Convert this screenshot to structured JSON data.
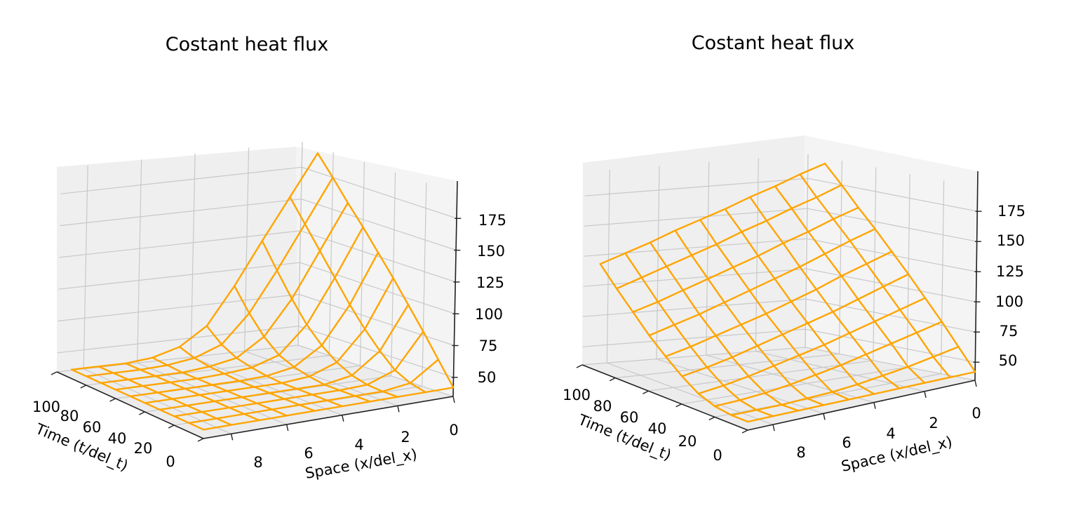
{
  "colors": {
    "wire": "#FFA500"
  },
  "chart_data": [
    {
      "type": "surface-wireframe",
      "title": "Costant heat flux",
      "xlabel": "Time (t/del_t)",
      "ylabel": "Space (x/del_x)",
      "zlabel": "",
      "x_ticks": [
        0,
        20,
        40,
        60,
        80,
        100
      ],
      "y_ticks": [
        0,
        2,
        4,
        6,
        8
      ],
      "z_ticks": [
        50,
        75,
        100,
        125,
        150,
        175
      ],
      "xlim": [
        0,
        100
      ],
      "ylim": [
        0,
        9
      ],
      "zlim": [
        35,
        195
      ],
      "grid": true,
      "surface": {
        "x_lines": [
          0,
          10,
          20,
          30,
          40,
          50,
          60,
          70,
          80,
          90
        ],
        "y_points": [
          0,
          1,
          2,
          3,
          4,
          5,
          6,
          7,
          8,
          9
        ],
        "z_by_x_line": [
          [
            42,
            42,
            42,
            42,
            42,
            42,
            42,
            42,
            42,
            42
          ],
          [
            60,
            45,
            42,
            42,
            42,
            42,
            42,
            42,
            42,
            42
          ],
          [
            78,
            51,
            43,
            42,
            42,
            42,
            42,
            42,
            42,
            42
          ],
          [
            95,
            62,
            46,
            42,
            42,
            42,
            42,
            42,
            42,
            42
          ],
          [
            112,
            75,
            52,
            44,
            42,
            42,
            42,
            42,
            42,
            42
          ],
          [
            128,
            90,
            61,
            47,
            43,
            42,
            42,
            42,
            42,
            42
          ],
          [
            144,
            107,
            73,
            52,
            45,
            43,
            42,
            42,
            42,
            42
          ],
          [
            159,
            124,
            89,
            62,
            48,
            44,
            42,
            42,
            42,
            42
          ],
          [
            175,
            141,
            107,
            76,
            54,
            46,
            43,
            42,
            42,
            42
          ],
          [
            190,
            158,
            126,
            93,
            64,
            50,
            44,
            42,
            42,
            42
          ]
        ]
      }
    },
    {
      "type": "surface-wireframe",
      "title": "Costant heat flux",
      "xlabel": "Time (t/del_t)",
      "ylabel": "Space (x/del_x)",
      "zlabel": "",
      "x_ticks": [
        0,
        20,
        40,
        60,
        80,
        100
      ],
      "y_ticks": [
        0,
        2,
        4,
        6,
        8
      ],
      "z_ticks": [
        50,
        75,
        100,
        125,
        150,
        175
      ],
      "xlim": [
        0,
        100
      ],
      "ylim": [
        0,
        9
      ],
      "zlim": [
        35,
        195
      ],
      "grid": true,
      "surface": {
        "x_lines": [
          0,
          10,
          20,
          30,
          40,
          50,
          60,
          70,
          80,
          90
        ],
        "y_points": [
          0,
          1,
          2,
          3,
          4,
          5,
          6,
          7,
          8,
          9
        ],
        "z_by_x_line": [
          [
            42,
            42,
            42,
            42,
            42,
            42,
            42,
            42,
            42,
            42
          ],
          [
            60,
            56,
            52,
            49,
            46,
            44,
            43,
            42,
            42,
            42
          ],
          [
            78,
            73,
            68,
            63,
            58,
            54,
            50,
            47,
            45,
            44
          ],
          [
            95,
            89,
            83,
            77,
            71,
            66,
            61,
            56,
            52,
            49
          ],
          [
            112,
            105,
            98,
            91,
            85,
            79,
            73,
            67,
            62,
            58
          ],
          [
            128,
            121,
            114,
            106,
            99,
            92,
            86,
            80,
            74,
            69
          ],
          [
            144,
            137,
            129,
            121,
            114,
            107,
            100,
            93,
            87,
            81
          ],
          [
            159,
            152,
            144,
            137,
            129,
            122,
            115,
            108,
            101,
            95
          ],
          [
            175,
            167,
            160,
            152,
            145,
            137,
            130,
            123,
            116,
            109
          ],
          [
            190,
            183,
            175,
            168,
            160,
            153,
            146,
            138,
            131,
            124
          ]
        ]
      }
    }
  ]
}
